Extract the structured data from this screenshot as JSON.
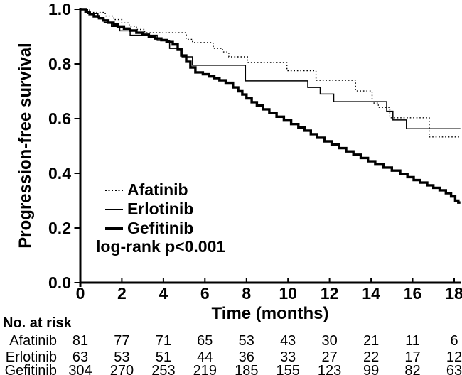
{
  "chart_data": {
    "type": "line",
    "subtype": "kaplan-meier-step",
    "title": "",
    "xlabel": "Time (months)",
    "ylabel": "Progression-free survival",
    "xlim": [
      0,
      18.3
    ],
    "ylim": [
      0.0,
      1.0
    ],
    "x_ticks": [
      0,
      2,
      4,
      6,
      8,
      10,
      12,
      14,
      16,
      18
    ],
    "y_ticks": [
      1.0,
      0.8,
      0.6,
      0.4,
      0.2,
      0.0
    ],
    "grid": false,
    "legend_position": "inside-lower-left",
    "annotation": "log-rank p<0.001",
    "t_end": 18.3,
    "line_color": "#000000",
    "series": [
      {
        "name": "Afatinib",
        "style": "dotted",
        "points": [
          [
            0,
            1.0
          ],
          [
            0.45,
            0.988
          ],
          [
            1.2,
            0.975
          ],
          [
            1.6,
            0.962
          ],
          [
            2.0,
            0.95
          ],
          [
            2.35,
            0.938
          ],
          [
            2.7,
            0.926
          ],
          [
            3.1,
            0.914
          ],
          [
            5.1,
            0.89
          ],
          [
            5.4,
            0.878
          ],
          [
            6.4,
            0.857
          ],
          [
            6.85,
            0.844
          ],
          [
            7.15,
            0.826
          ],
          [
            8.05,
            0.805
          ],
          [
            9.95,
            0.775
          ],
          [
            11.35,
            0.74
          ],
          [
            13.25,
            0.701
          ],
          [
            14.05,
            0.657
          ],
          [
            14.35,
            0.641
          ],
          [
            14.9,
            0.603
          ],
          [
            16.8,
            0.533
          ]
        ]
      },
      {
        "name": "Erlotinib",
        "style": "thin-solid",
        "points": [
          [
            0,
            1.0
          ],
          [
            0.35,
            0.984
          ],
          [
            0.85,
            0.968
          ],
          [
            1.15,
            0.952
          ],
          [
            1.5,
            0.937
          ],
          [
            1.9,
            0.921
          ],
          [
            2.4,
            0.905
          ],
          [
            3.7,
            0.886
          ],
          [
            4.3,
            0.857
          ],
          [
            4.9,
            0.826
          ],
          [
            5.4,
            0.795
          ],
          [
            7.95,
            0.738
          ],
          [
            10.95,
            0.714
          ],
          [
            11.55,
            0.69
          ],
          [
            12.2,
            0.662
          ],
          [
            14.75,
            0.627
          ],
          [
            15.05,
            0.595
          ],
          [
            15.7,
            0.563
          ]
        ]
      },
      {
        "name": "Gefitinib",
        "style": "thick-solid",
        "points": [
          [
            0,
            1.0
          ],
          [
            0.25,
            0.99
          ],
          [
            0.45,
            0.982
          ],
          [
            0.65,
            0.974
          ],
          [
            0.9,
            0.967
          ],
          [
            1.1,
            0.959
          ],
          [
            1.35,
            0.951
          ],
          [
            1.6,
            0.944
          ],
          [
            1.8,
            0.937
          ],
          [
            2.1,
            0.929
          ],
          [
            2.4,
            0.922
          ],
          [
            2.7,
            0.914
          ],
          [
            3.0,
            0.907
          ],
          [
            3.3,
            0.9
          ],
          [
            3.6,
            0.893
          ],
          [
            3.9,
            0.887
          ],
          [
            4.15,
            0.88
          ],
          [
            4.45,
            0.871
          ],
          [
            4.69,
            0.852
          ],
          [
            4.86,
            0.831
          ],
          [
            5.1,
            0.808
          ],
          [
            5.3,
            0.787
          ],
          [
            5.54,
            0.769
          ],
          [
            5.9,
            0.762
          ],
          [
            6.2,
            0.754
          ],
          [
            6.45,
            0.748
          ],
          [
            6.7,
            0.74
          ],
          [
            7.0,
            0.731
          ],
          [
            7.35,
            0.714
          ],
          [
            7.6,
            0.7
          ],
          [
            7.8,
            0.688
          ],
          [
            8.0,
            0.674
          ],
          [
            8.25,
            0.66
          ],
          [
            8.5,
            0.648
          ],
          [
            8.8,
            0.634
          ],
          [
            9.1,
            0.62
          ],
          [
            9.45,
            0.607
          ],
          [
            9.8,
            0.593
          ],
          [
            10.15,
            0.58
          ],
          [
            10.5,
            0.568
          ],
          [
            10.8,
            0.556
          ],
          [
            11.1,
            0.543
          ],
          [
            11.4,
            0.53
          ],
          [
            11.75,
            0.517
          ],
          [
            12.1,
            0.505
          ],
          [
            12.45,
            0.492
          ],
          [
            12.8,
            0.48
          ],
          [
            13.15,
            0.468
          ],
          [
            13.5,
            0.456
          ],
          [
            13.85,
            0.444
          ],
          [
            14.2,
            0.432
          ],
          [
            14.6,
            0.421
          ],
          [
            15.0,
            0.41
          ],
          [
            15.4,
            0.398
          ],
          [
            15.75,
            0.386
          ],
          [
            16.05,
            0.375
          ],
          [
            16.35,
            0.366
          ],
          [
            16.7,
            0.356
          ],
          [
            17.0,
            0.347
          ],
          [
            17.3,
            0.338
          ],
          [
            17.6,
            0.327
          ],
          [
            17.85,
            0.315
          ],
          [
            18.05,
            0.3
          ],
          [
            18.2,
            0.293
          ]
        ]
      }
    ]
  },
  "risk_table": {
    "title": "No. at risk",
    "times": [
      0,
      2,
      4,
      6,
      8,
      10,
      12,
      14,
      16,
      18
    ],
    "rows": [
      {
        "name": "Afatinib",
        "values": [
          81,
          77,
          71,
          65,
          53,
          43,
          30,
          21,
          11,
          6
        ]
      },
      {
        "name": "Erlotinib",
        "values": [
          63,
          53,
          51,
          44,
          36,
          33,
          27,
          22,
          17,
          12
        ]
      },
      {
        "name": "Gefitinib",
        "values": [
          304,
          270,
          253,
          219,
          185,
          155,
          123,
          99,
          82,
          63
        ]
      }
    ]
  },
  "colors": {
    "foreground": "#000000",
    "background": "#ffffff"
  }
}
